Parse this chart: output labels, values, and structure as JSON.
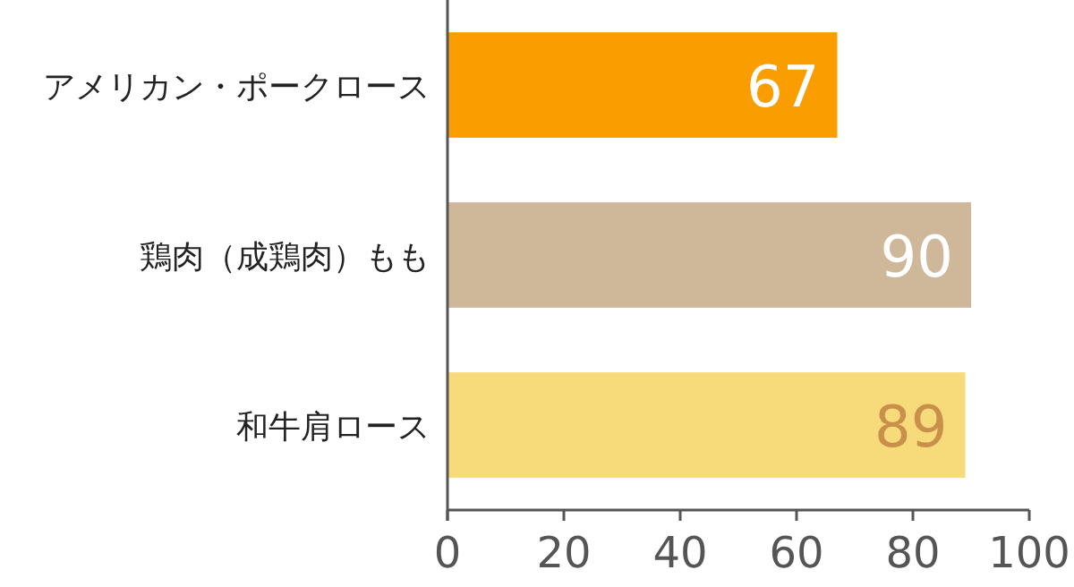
{
  "chart_data": {
    "type": "bar",
    "orientation": "horizontal",
    "categories": [
      "アメリカン・ポークロース",
      "鶏肉（成鶏肉）もも",
      "和牛肩ロース"
    ],
    "values": [
      67,
      90,
      89
    ],
    "colors": [
      "#f99d00",
      "#cfb89a",
      "#f7da7a"
    ],
    "xlim": [
      0,
      100
    ],
    "xticks": [
      0,
      20,
      40,
      60,
      80,
      100
    ],
    "data_labels": true,
    "grid": false,
    "legend": false
  }
}
